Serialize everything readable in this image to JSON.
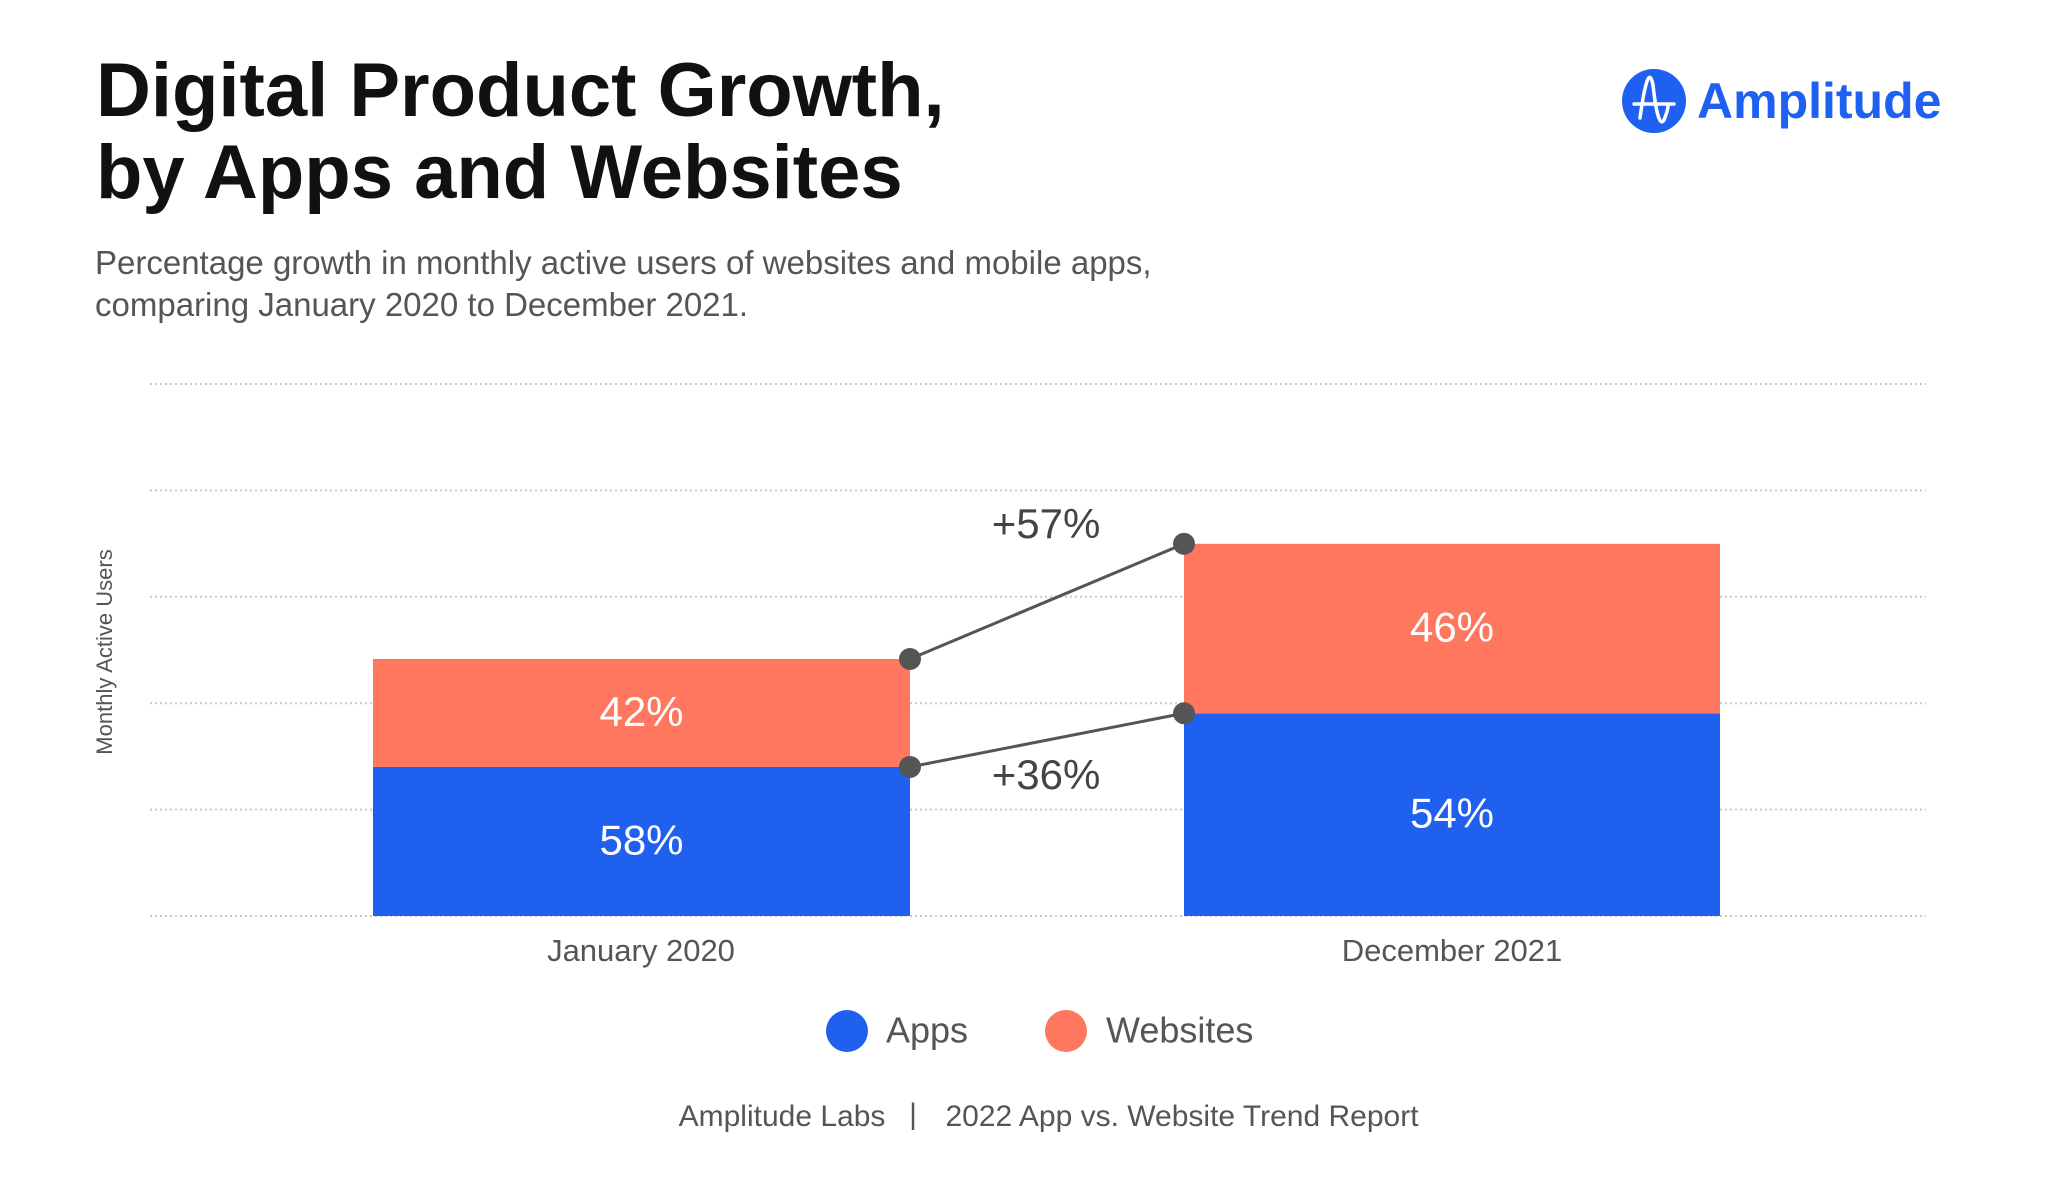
{
  "header": {
    "title_line1": "Digital Product Growth,",
    "title_line2": "by Apps and Websites",
    "subtitle_line1": "Percentage growth in monthly active users of websites and mobile apps,",
    "subtitle_line2": "comparing January 2020 to December 2021.",
    "logo_text": "Amplitude"
  },
  "colors": {
    "apps": "#1f61ee",
    "websites": "#ff775e",
    "brand": "#1e61f0",
    "connector": "#555555"
  },
  "chart_data": {
    "type": "bar",
    "stacked": true,
    "ylabel": "Monthly Active Users",
    "categories": [
      "January 2020",
      "December 2021"
    ],
    "series": [
      {
        "name": "Apps",
        "share_labels": [
          "58%",
          "54%"
        ],
        "shares": [
          58,
          54
        ],
        "growth_label": "+36%",
        "growth": 36
      },
      {
        "name": "Websites",
        "share_labels": [
          "42%",
          "46%"
        ],
        "shares": [
          42,
          46
        ],
        "growth_label": "+57%",
        "growth": 57
      }
    ],
    "grid": true,
    "legend_position": "bottom"
  },
  "footer": {
    "source": "Amplitude Labs",
    "separator": "|",
    "report": "2022 App vs. Website Trend Report"
  }
}
